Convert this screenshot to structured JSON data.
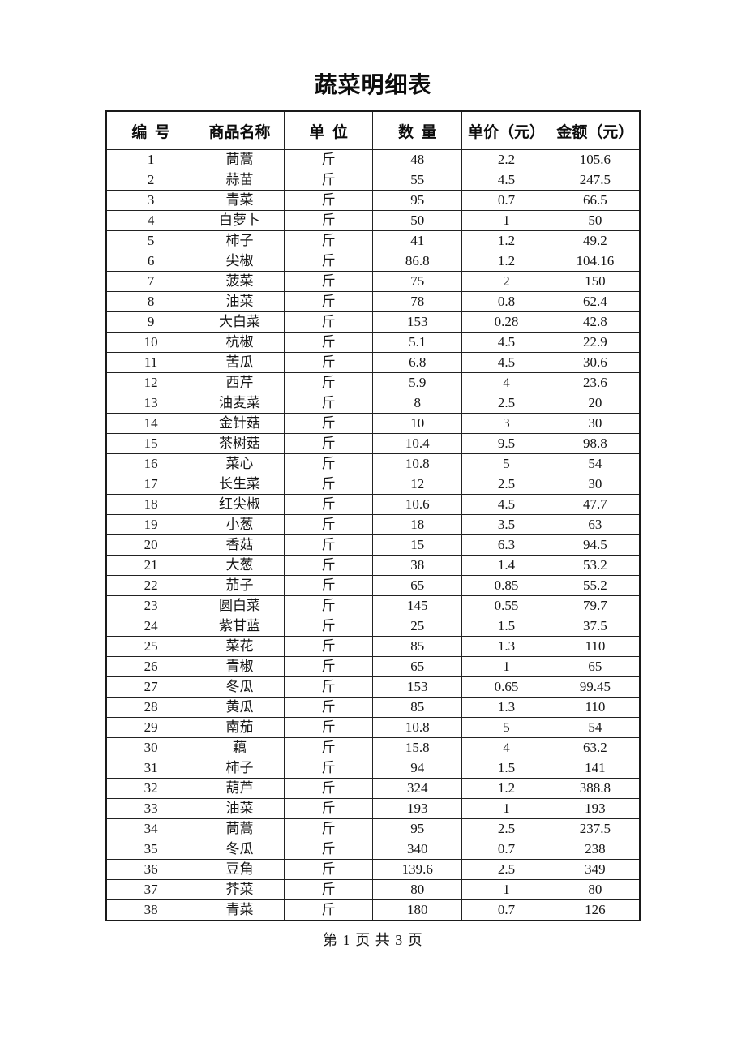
{
  "page": {
    "title": "蔬菜明细表",
    "footer": "第 1 页 共 3 页"
  },
  "table": {
    "columns": [
      "number",
      "name",
      "unit",
      "quantity",
      "unit_price",
      "amount"
    ],
    "headers": [
      "编  号",
      "商品名称",
      "单  位",
      "数  量",
      "单价（元）",
      "金额（元）"
    ],
    "rows": [
      [
        "1",
        "茼蒿",
        "斤",
        "48",
        "2.2",
        "105.6"
      ],
      [
        "2",
        "蒜苗",
        "斤",
        "55",
        "4.5",
        "247.5"
      ],
      [
        "3",
        "青菜",
        "斤",
        "95",
        "0.7",
        "66.5"
      ],
      [
        "4",
        "白萝卜",
        "斤",
        "50",
        "1",
        "50"
      ],
      [
        "5",
        "柿子",
        "斤",
        "41",
        "1.2",
        "49.2"
      ],
      [
        "6",
        "尖椒",
        "斤",
        "86.8",
        "1.2",
        "104.16"
      ],
      [
        "7",
        "菠菜",
        "斤",
        "75",
        "2",
        "150"
      ],
      [
        "8",
        "油菜",
        "斤",
        "78",
        "0.8",
        "62.4"
      ],
      [
        "9",
        "大白菜",
        "斤",
        "153",
        "0.28",
        "42.8"
      ],
      [
        "10",
        "杭椒",
        "斤",
        "5.1",
        "4.5",
        "22.9"
      ],
      [
        "11",
        "苦瓜",
        "斤",
        "6.8",
        "4.5",
        "30.6"
      ],
      [
        "12",
        "西芹",
        "斤",
        "5.9",
        "4",
        "23.6"
      ],
      [
        "13",
        "油麦菜",
        "斤",
        "8",
        "2.5",
        "20"
      ],
      [
        "14",
        "金针菇",
        "斤",
        "10",
        "3",
        "30"
      ],
      [
        "15",
        "茶树菇",
        "斤",
        "10.4",
        "9.5",
        "98.8"
      ],
      [
        "16",
        "菜心",
        "斤",
        "10.8",
        "5",
        "54"
      ],
      [
        "17",
        "长生菜",
        "斤",
        "12",
        "2.5",
        "30"
      ],
      [
        "18",
        "红尖椒",
        "斤",
        "10.6",
        "4.5",
        "47.7"
      ],
      [
        "19",
        "小葱",
        "斤",
        "18",
        "3.5",
        "63"
      ],
      [
        "20",
        "香菇",
        "斤",
        "15",
        "6.3",
        "94.5"
      ],
      [
        "21",
        "大葱",
        "斤",
        "38",
        "1.4",
        "53.2"
      ],
      [
        "22",
        "茄子",
        "斤",
        "65",
        "0.85",
        "55.2"
      ],
      [
        "23",
        "圆白菜",
        "斤",
        "145",
        "0.55",
        "79.7"
      ],
      [
        "24",
        "紫甘蓝",
        "斤",
        "25",
        "1.5",
        "37.5"
      ],
      [
        "25",
        "菜花",
        "斤",
        "85",
        "1.3",
        "110"
      ],
      [
        "26",
        "青椒",
        "斤",
        "65",
        "1",
        "65"
      ],
      [
        "27",
        "冬瓜",
        "斤",
        "153",
        "0.65",
        "99.45"
      ],
      [
        "28",
        "黄瓜",
        "斤",
        "85",
        "1.3",
        "110"
      ],
      [
        "29",
        "南茄",
        "斤",
        "10.8",
        "5",
        "54"
      ],
      [
        "30",
        "藕",
        "斤",
        "15.8",
        "4",
        "63.2"
      ],
      [
        "31",
        "柿子",
        "斤",
        "94",
        "1.5",
        "141"
      ],
      [
        "32",
        "葫芦",
        "斤",
        "324",
        "1.2",
        "388.8"
      ],
      [
        "33",
        "油菜",
        "斤",
        "193",
        "1",
        "193"
      ],
      [
        "34",
        "茼蒿",
        "斤",
        "95",
        "2.5",
        "237.5"
      ],
      [
        "35",
        "冬瓜",
        "斤",
        "340",
        "0.7",
        "238"
      ],
      [
        "36",
        "豆角",
        "斤",
        "139.6",
        "2.5",
        "349"
      ],
      [
        "37",
        "芥菜",
        "斤",
        "80",
        "1",
        "80"
      ],
      [
        "38",
        "青菜",
        "斤",
        "180",
        "0.7",
        "126"
      ]
    ]
  }
}
